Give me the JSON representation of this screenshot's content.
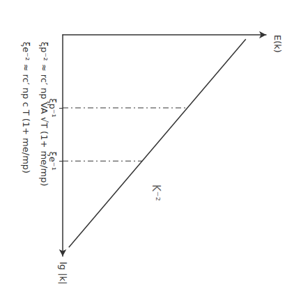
{
  "chart_data": {
    "type": "line",
    "color": "#333333",
    "x": [
      0.2,
      9.6
    ],
    "values": [
      9.0,
      0.3
    ],
    "xlabel": "lg |k|",
    "ylabel": "E(k)",
    "xlim": [
      0,
      10
    ],
    "ylim": [
      0,
      10
    ],
    "xticks": [
      {
        "value": 3.3,
        "label": "ξp⁻¹"
      },
      {
        "value": 5.7,
        "label": "ξe⁻¹"
      }
    ],
    "yticks": [],
    "tick_labels": "x",
    "grid": false,
    "guides": {
      "line_style": "dashdot",
      "x": [
        3.3,
        5.7
      ],
      "y": [
        6.13,
        3.91
      ]
    },
    "annotations": [
      {
        "text": "K⁻²",
        "x": 6.6,
        "y": 4.6
      }
    ],
    "notes": [
      "ξp⁻² ≈ rc′ np VA √T (1+ me/mp)",
      "ξe⁻² ≈ rc′ np c T (1+ me/mp)"
    ]
  }
}
